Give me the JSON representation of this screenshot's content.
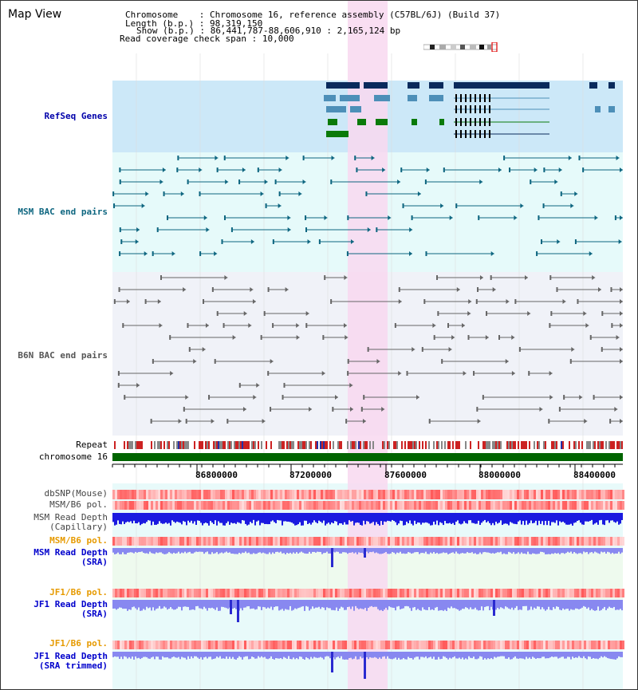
{
  "title": "Map View",
  "info": {
    "chromosome_key": "Chromosome",
    "chromosome_value": "Chromosome 16, reference assembly (C57BL/6J) (Build 37)",
    "length_key": "Length (b.p.)",
    "length_value": "98,319,150",
    "show_key": "Show (b.p.)",
    "show_value": "86,441,787-88,606,910 : 2,165,124 bp",
    "coverage_key": "Read coverage check span",
    "coverage_value": "10,000"
  },
  "tracks": {
    "refseq": "RefSeq Genes",
    "msm_bac": "MSM BAC end pairs",
    "b6n_bac": "B6N BAC end pairs",
    "repeat": "Repeat",
    "chromosome": "chromosome 16",
    "dbsnp": "dbSNP(Mouse)",
    "msm_b6_pol": "MSM/B6 pol.",
    "msm_depth_cap_1": "MSM Read Depth",
    "msm_depth_cap_2": "(Capillary)",
    "msm_b6_pol_sra": "MSM/B6 pol.",
    "msm_depth_sra_1": "MSM Read Depth",
    "msm_depth_sra_2": "(SRA)",
    "jf1_b6_pol": "JF1/B6 pol.",
    "jf1_depth_sra_1": "JF1 Read Depth",
    "jf1_depth_sra_2": "(SRA)",
    "jf1_b6_pol_trim": "JF1/B6 pol.",
    "jf1_depth_trim_1": "JF1 Read Depth",
    "jf1_depth_trim_2": "(SRA trimmed)"
  },
  "axis": {
    "ticks": [
      "86800000",
      "87200000",
      "87600000",
      "88000000",
      "88400000"
    ]
  },
  "colors": {
    "refseq_bg": "#cce8f8",
    "msm_bg": "#e6fafa",
    "b6n_bg": "#f0f2f8",
    "highlight": "#f8d8f0",
    "chromosome": "#006400",
    "msm_color": "#0e6680",
    "b6n_color": "#666666",
    "gene_navy": "#0a2a5c",
    "gene_steel": "#4d8fb8",
    "gene_green": "#0a7a0a",
    "depth_blue": "#1a1ae0",
    "depth_light": "#8888f0",
    "orange_label": "#e69a00",
    "blue_label": "#0000cc"
  }
}
